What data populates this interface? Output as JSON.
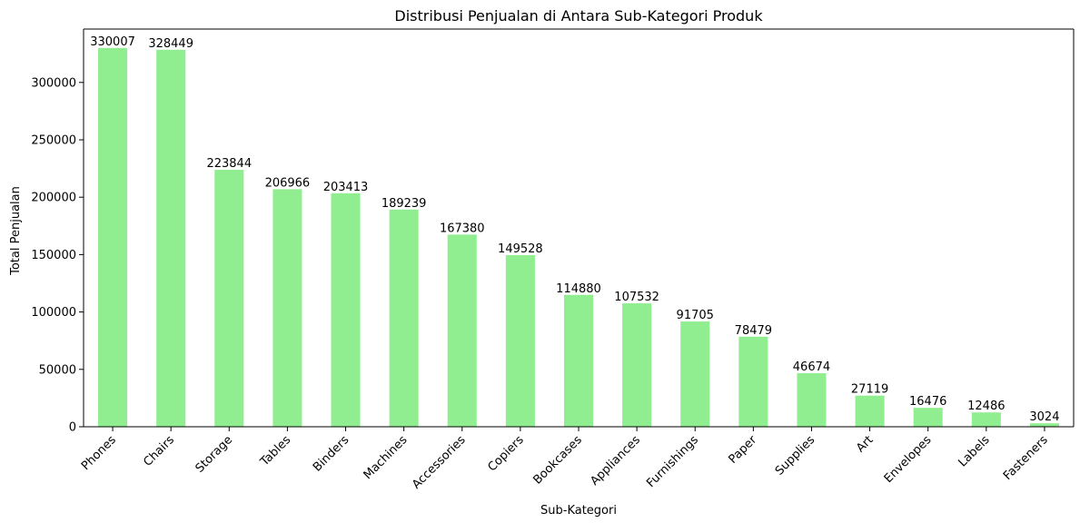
{
  "chart_data": {
    "type": "bar",
    "title": "Distribusi Penjualan di Antara Sub-Kategori Produk",
    "xlabel": "Sub-Kategori",
    "ylabel": "Total Penjualan",
    "ylim": [
      0,
      346507
    ],
    "yticks": [
      0,
      50000,
      100000,
      150000,
      200000,
      250000,
      300000
    ],
    "grid": false,
    "bar_color": "#90ee90",
    "categories": [
      "Phones",
      "Chairs",
      "Storage",
      "Tables",
      "Binders",
      "Machines",
      "Accessories",
      "Copiers",
      "Bookcases",
      "Appliances",
      "Furnishings",
      "Paper",
      "Supplies",
      "Art",
      "Envelopes",
      "Labels",
      "Fasteners"
    ],
    "values": [
      330007,
      328449,
      223844,
      206966,
      203413,
      189239,
      167380,
      149528,
      114880,
      107532,
      91705,
      78479,
      46674,
      27119,
      16476,
      12486,
      3024
    ]
  }
}
